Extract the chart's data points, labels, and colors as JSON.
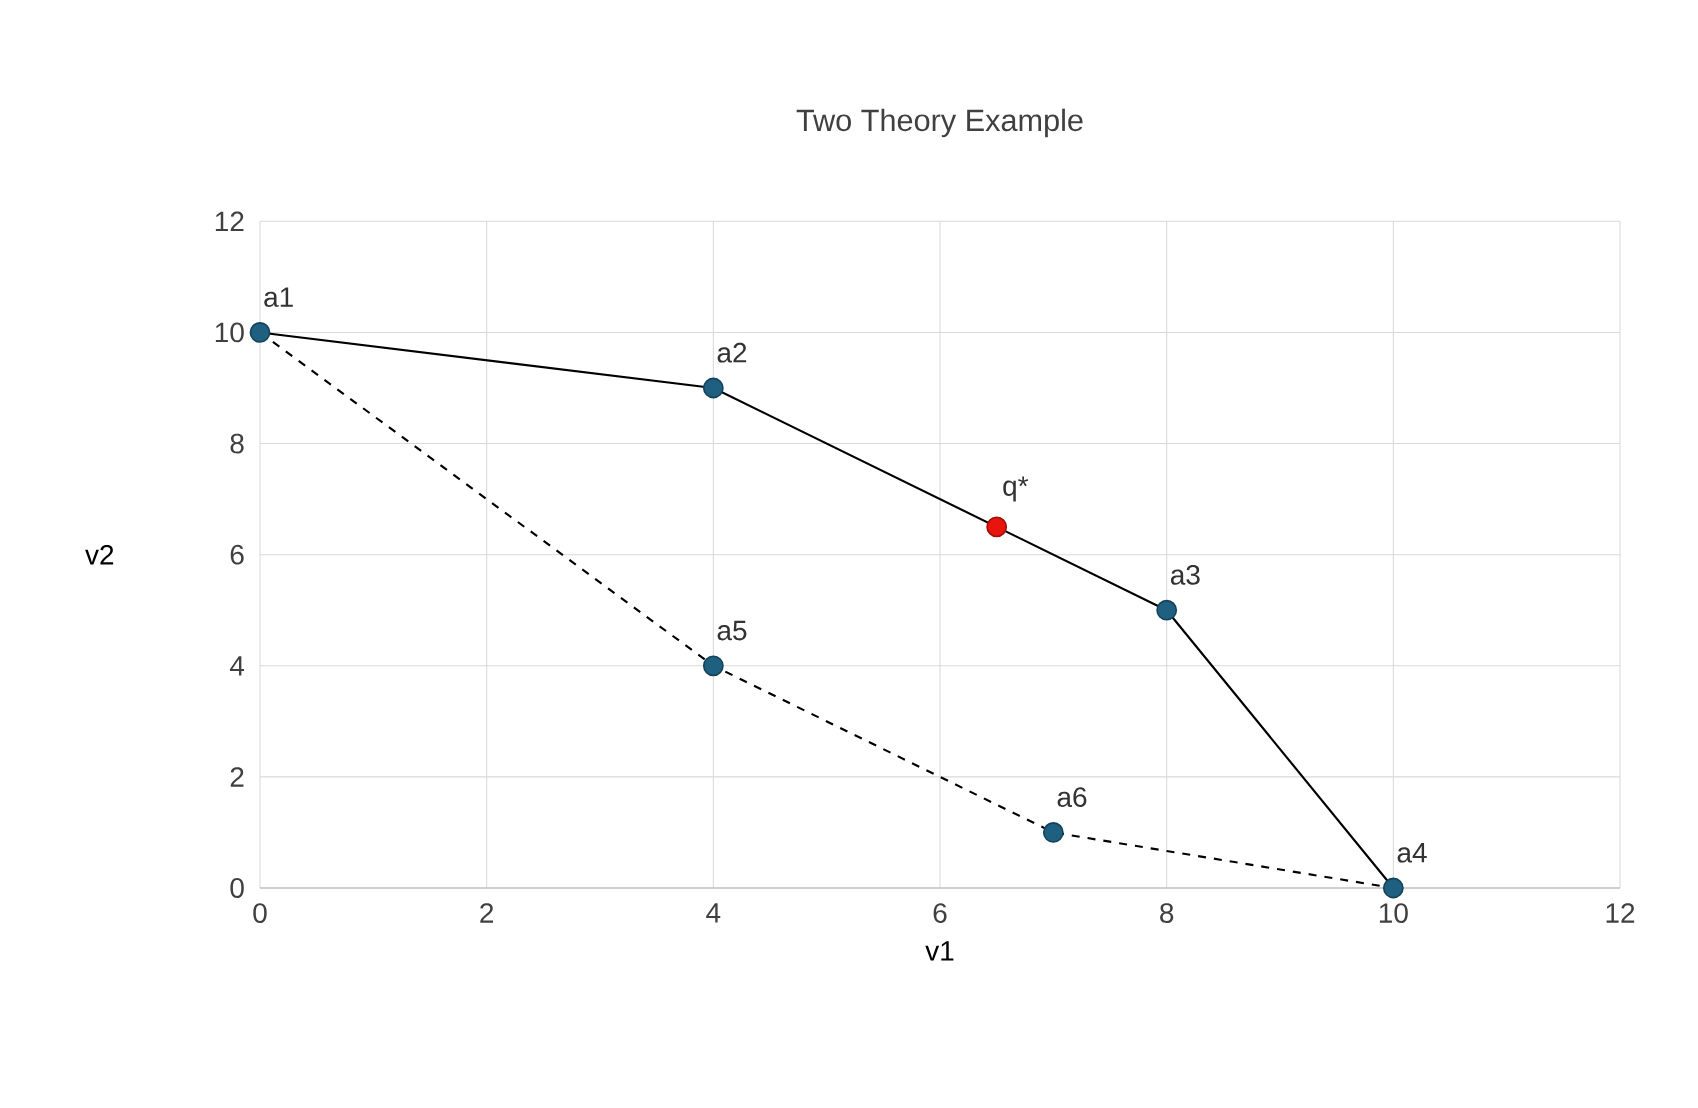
{
  "chart_data": {
    "type": "line",
    "title": "Two Theory Example",
    "xlabel": "v1",
    "ylabel": "v2",
    "xlim": [
      0,
      12
    ],
    "ylim": [
      0,
      12
    ],
    "xticks": [
      0,
      2,
      4,
      6,
      8,
      10,
      12
    ],
    "yticks": [
      0,
      2,
      4,
      6,
      8,
      10,
      12
    ],
    "grid": true,
    "series": [
      {
        "type": "line",
        "color": "#000000",
        "line_style": "solid",
        "x": [
          0,
          4,
          8,
          10
        ],
        "values": [
          10,
          9,
          5,
          0
        ]
      },
      {
        "type": "line",
        "color": "#000000",
        "line_style": "dashed",
        "x": [
          0,
          4,
          7,
          10
        ],
        "values": [
          10,
          4,
          1,
          0
        ]
      },
      {
        "type": "scatter",
        "color": "#1f5f7f",
        "marker": "circle",
        "x": [
          0,
          4,
          8,
          10,
          4,
          7
        ],
        "values": [
          10,
          9,
          5,
          0,
          4,
          1
        ]
      },
      {
        "type": "scatter",
        "color": "#e8150e",
        "marker": "circle",
        "x": [
          6.5
        ],
        "values": [
          6.5
        ]
      }
    ],
    "annotations": [
      {
        "text": "a1",
        "x": 0,
        "y": 10
      },
      {
        "text": "a2",
        "x": 4,
        "y": 9
      },
      {
        "text": "q*",
        "x": 6.5,
        "y": 6.5
      },
      {
        "text": "a3",
        "x": 8,
        "y": 5
      },
      {
        "text": "a4",
        "x": 10,
        "y": 0
      },
      {
        "text": "a5",
        "x": 4,
        "y": 4
      },
      {
        "text": "a6",
        "x": 7,
        "y": 1
      }
    ]
  }
}
